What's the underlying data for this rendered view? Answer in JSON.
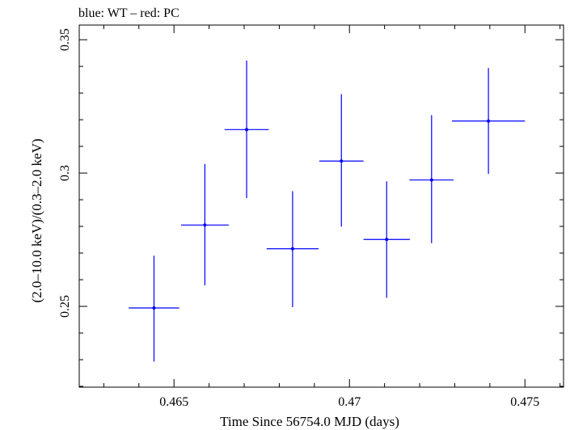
{
  "chart_data": {
    "type": "scatter",
    "title": "blue: WT – red: PC",
    "xlabel": "Time Since 56754.0 MJD (days)",
    "ylabel": "(2.0–10.0 keV)/(0.3–2.0 keV)",
    "xlim": [
      0.4623,
      0.4761
    ],
    "ylim": [
      0.2197,
      0.3555
    ],
    "x_ticks": [
      0.465,
      0.47,
      0.475
    ],
    "x_tick_labels": [
      "0.465",
      "0.47",
      "0.475"
    ],
    "x_minor_step": 0.001,
    "y_ticks": [
      0.25,
      0.3,
      0.35
    ],
    "y_tick_labels": [
      "0.25",
      "0.3",
      "0.35"
    ],
    "y_minor_step": 0.01,
    "grid": false,
    "series": [
      {
        "name": "WT",
        "color": "#0000ff",
        "points": [
          {
            "x": 0.46443,
            "xerr": 0.00072,
            "y": 0.2494,
            "yerr_low": 0.0201,
            "yerr_high": 0.0196
          },
          {
            "x": 0.46588,
            "xerr": 0.00068,
            "y": 0.2805,
            "yerr_low": 0.0226,
            "yerr_high": 0.0229
          },
          {
            "x": 0.46707,
            "xerr": 0.00063,
            "y": 0.3163,
            "yerr_low": 0.0257,
            "yerr_high": 0.0259
          },
          {
            "x": 0.46838,
            "xerr": 0.00074,
            "y": 0.2716,
            "yerr_low": 0.0219,
            "yerr_high": 0.0216
          },
          {
            "x": 0.46977,
            "xerr": 0.00063,
            "y": 0.3045,
            "yerr_low": 0.0246,
            "yerr_high": 0.0251
          },
          {
            "x": 0.47106,
            "xerr": 0.00066,
            "y": 0.2751,
            "yerr_low": 0.0219,
            "yerr_high": 0.0218
          },
          {
            "x": 0.47234,
            "xerr": 0.00063,
            "y": 0.2974,
            "yerr_low": 0.0237,
            "yerr_high": 0.0243
          },
          {
            "x": 0.47396,
            "xerr": 0.00104,
            "y": 0.3195,
            "yerr_low": 0.0198,
            "yerr_high": 0.0199
          }
        ]
      }
    ]
  }
}
